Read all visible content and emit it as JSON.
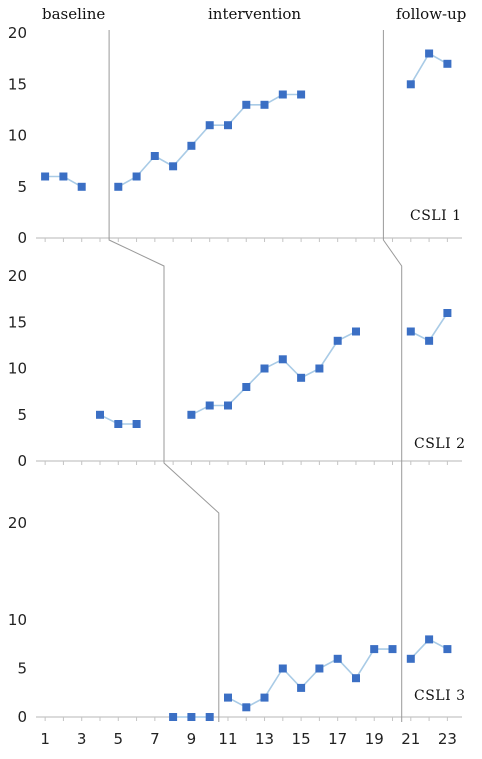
{
  "phase_labels": [
    "baseline",
    "intervention",
    "follow-up"
  ],
  "chart_data": {
    "type": "line",
    "x_ticks": [
      1,
      3,
      5,
      7,
      9,
      11,
      13,
      15,
      17,
      19,
      21,
      23
    ],
    "x_range": [
      0.5,
      23.8
    ],
    "line_color": "#a9cbe6",
    "marker_color": "#3b6fc4",
    "panels": [
      {
        "label": "CSLI 1",
        "ylim": [
          0,
          20
        ],
        "yticks": [
          0,
          5,
          10,
          15,
          20
        ],
        "segments": [
          {
            "phase": "baseline",
            "x": [
              1,
              2,
              3
            ],
            "y": [
              6,
              6,
              5
            ]
          },
          {
            "phase": "intervention",
            "x": [
              5,
              6,
              7,
              8,
              9,
              10,
              11,
              12,
              13,
              14,
              15
            ],
            "y": [
              5,
              6,
              8,
              7,
              9,
              11,
              11,
              13,
              13,
              14,
              14
            ]
          },
          {
            "phase": "follow-up",
            "x": [
              21,
              22,
              23
            ],
            "y": [
              15,
              18,
              17
            ]
          }
        ]
      },
      {
        "label": "CSLI 2",
        "ylim": [
          0,
          20
        ],
        "yticks": [
          0,
          5,
          10,
          15,
          20
        ],
        "segments": [
          {
            "phase": "baseline",
            "x": [
              4,
              5,
              6
            ],
            "y": [
              5,
              4,
              4
            ]
          },
          {
            "phase": "intervention",
            "x": [
              9,
              10,
              11,
              12,
              13,
              14,
              15,
              16,
              17,
              18
            ],
            "y": [
              5,
              6,
              6,
              8,
              10,
              11,
              9,
              10,
              13,
              14
            ]
          },
          {
            "phase": "follow-up",
            "x": [
              21,
              22,
              23
            ],
            "y": [
              14,
              13,
              16
            ]
          }
        ]
      },
      {
        "label": "CSLI 3",
        "ylim": [
          0,
          20
        ],
        "yticks": [
          0,
          5,
          10,
          20
        ],
        "segments": [
          {
            "phase": "baseline",
            "x": [
              8,
              9,
              10
            ],
            "y": [
              0,
              0,
              0
            ]
          },
          {
            "phase": "intervention",
            "x": [
              11,
              12,
              13,
              14,
              15,
              16,
              17,
              18,
              19,
              20
            ],
            "y": [
              2,
              1,
              2,
              5,
              3,
              5,
              6,
              4,
              7,
              7
            ]
          },
          {
            "phase": "follow-up",
            "x": [
              21,
              22,
              23
            ],
            "y": [
              6,
              8,
              7
            ]
          }
        ]
      }
    ],
    "phase_change_lines": [
      {
        "panel": 0,
        "x": 4.5
      },
      {
        "panel": 0,
        "x": 19.5
      },
      {
        "panel": 1,
        "x": 7.5
      },
      {
        "panel": 1,
        "x": 20.5
      },
      {
        "panel": 2,
        "x": 10.5
      },
      {
        "panel": 2,
        "x": 20.5
      }
    ]
  }
}
